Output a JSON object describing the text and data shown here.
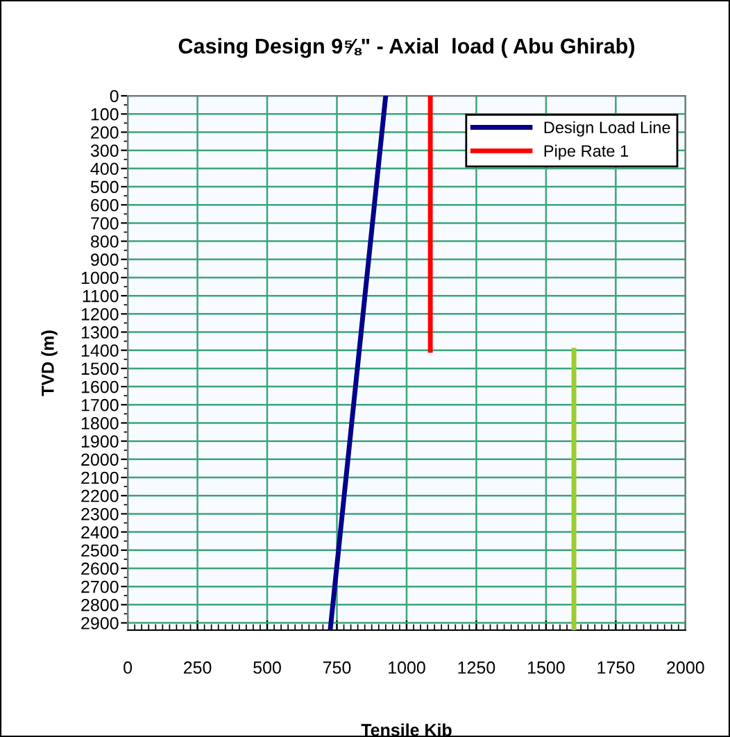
{
  "chart_data": {
    "type": "line",
    "title": "Casing Design 9⅝\" - Axial  load ( Abu Ghirab)",
    "xlabel": "Tensile Kib",
    "ylabel": "TVD (m)",
    "series": [
      {
        "name": "Design Load Line",
        "color": "#00008b",
        "x": [
          925,
          726
        ],
        "values": [
          0,
          2940
        ]
      },
      {
        "name": "Pipe Rate 1",
        "color": "#ff0000",
        "x": [
          1085,
          1085
        ],
        "values": [
          0,
          1400
        ]
      },
      {
        "color": "#9acd32",
        "x": [
          1600,
          1600
        ],
        "values": [
          1400,
          2940
        ]
      }
    ],
    "xlim": [
      0,
      2000
    ],
    "xticks": [
      0,
      250,
      500,
      750,
      1000,
      1250,
      1500,
      1750,
      2000
    ],
    "ylim": [
      2940,
      0
    ],
    "yticks": [
      0,
      100,
      200,
      300,
      400,
      500,
      600,
      700,
      800,
      900,
      1000,
      1100,
      1200,
      1300,
      1400,
      1500,
      1600,
      1700,
      1800,
      1900,
      2000,
      2100,
      2200,
      2300,
      2400,
      2500,
      2600,
      2700,
      2800,
      2900
    ],
    "grid": true,
    "legend": "top right",
    "marker": "none",
    "line_style": "solid"
  }
}
